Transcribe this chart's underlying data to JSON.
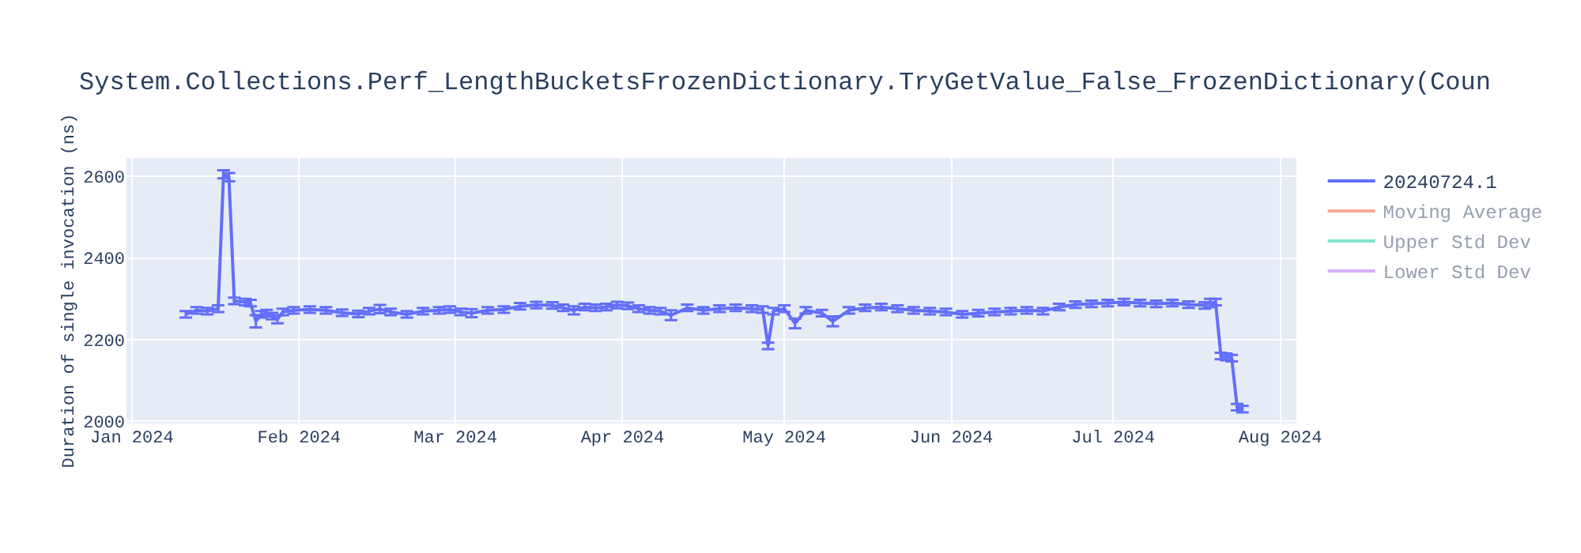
{
  "chart_data": {
    "type": "line",
    "title": "System.Collections.Perf_LengthBucketsFrozenDictionary.TryGetValue_False_FrozenDictionary(Coun",
    "ylabel": "Duration of single invocation (ns)",
    "x": [
      "2024-01-11",
      "2024-01-13",
      "2024-01-15",
      "2024-01-17",
      "2024-01-18",
      "2024-01-19",
      "2024-01-20",
      "2024-01-22",
      "2024-01-23",
      "2024-01-24",
      "2024-01-25",
      "2024-01-26",
      "2024-01-27",
      "2024-01-28",
      "2024-01-29",
      "2024-01-31",
      "2024-02-03",
      "2024-02-06",
      "2024-02-09",
      "2024-02-12",
      "2024-02-14",
      "2024-02-16",
      "2024-02-18",
      "2024-02-21",
      "2024-02-24",
      "2024-02-27",
      "2024-02-29",
      "2024-03-02",
      "2024-03-04",
      "2024-03-07",
      "2024-03-10",
      "2024-03-13",
      "2024-03-16",
      "2024-03-19",
      "2024-03-21",
      "2024-03-23",
      "2024-03-25",
      "2024-03-27",
      "2024-03-29",
      "2024-03-31",
      "2024-04-02",
      "2024-04-04",
      "2024-04-06",
      "2024-04-08",
      "2024-04-10",
      "2024-04-13",
      "2024-04-16",
      "2024-04-19",
      "2024-04-22",
      "2024-04-25",
      "2024-04-27",
      "2024-04-28",
      "2024-04-29",
      "2024-05-01",
      "2024-05-03",
      "2024-05-05",
      "2024-05-08",
      "2024-05-10",
      "2024-05-13",
      "2024-05-16",
      "2024-05-19",
      "2024-05-22",
      "2024-05-25",
      "2024-05-28",
      "2024-05-31",
      "2024-06-03",
      "2024-06-06",
      "2024-06-09",
      "2024-06-12",
      "2024-06-15",
      "2024-06-18",
      "2024-06-21",
      "2024-06-24",
      "2024-06-27",
      "2024-06-30",
      "2024-07-03",
      "2024-07-06",
      "2024-07-09",
      "2024-07-12",
      "2024-07-15",
      "2024-07-18",
      "2024-07-19",
      "2024-07-20",
      "2024-07-21",
      "2024-07-22",
      "2024-07-23",
      "2024-07-24",
      "2024-07-25"
    ],
    "series": [
      {
        "name": "20240724.1",
        "color": "#636efa",
        "values": [
          2262,
          2272,
          2270,
          2276,
          2605,
          2598,
          2295,
          2292,
          2290,
          2245,
          2262,
          2265,
          2258,
          2250,
          2268,
          2272,
          2274,
          2272,
          2266,
          2263,
          2270,
          2275,
          2268,
          2262,
          2270,
          2272,
          2274,
          2268,
          2265,
          2272,
          2274,
          2282,
          2285,
          2284,
          2278,
          2272,
          2280,
          2278,
          2280,
          2285,
          2283,
          2276,
          2272,
          2270,
          2260,
          2278,
          2272,
          2276,
          2278,
          2276,
          2274,
          2185,
          2270,
          2276,
          2240,
          2272,
          2265,
          2245,
          2272,
          2278,
          2280,
          2276,
          2272,
          2270,
          2268,
          2262,
          2265,
          2268,
          2270,
          2272,
          2270,
          2280,
          2286,
          2288,
          2290,
          2292,
          2290,
          2288,
          2290,
          2286,
          2284,
          2290,
          2292,
          2160,
          2158,
          2155,
          2035,
          2030
        ],
        "errors": [
          8,
          8,
          8,
          8,
          10,
          10,
          8,
          8,
          8,
          15,
          8,
          8,
          8,
          10,
          8,
          8,
          8,
          8,
          8,
          8,
          8,
          10,
          8,
          8,
          8,
          8,
          8,
          8,
          10,
          8,
          8,
          8,
          8,
          8,
          8,
          10,
          8,
          8,
          8,
          8,
          8,
          8,
          8,
          8,
          12,
          8,
          8,
          8,
          8,
          8,
          8,
          8,
          8,
          8,
          12,
          8,
          8,
          12,
          8,
          8,
          8,
          8,
          8,
          8,
          8,
          8,
          8,
          8,
          8,
          8,
          8,
          8,
          8,
          8,
          8,
          8,
          8,
          8,
          8,
          8,
          8,
          10,
          8,
          8,
          8,
          8,
          8,
          8
        ]
      },
      {
        "name": "Moving Average",
        "color": "#ef553b",
        "values": [
          null,
          null,
          null,
          null,
          null,
          null,
          null,
          null,
          null,
          null,
          null,
          null,
          null,
          null,
          null,
          null,
          null,
          null,
          null,
          null,
          null,
          null,
          null,
          null,
          null,
          null,
          null,
          null,
          null,
          null,
          null,
          null,
          null,
          null,
          null,
          null,
          null,
          null,
          null,
          null,
          null,
          null,
          null,
          null,
          null,
          null,
          null,
          null,
          null,
          null,
          null,
          null,
          null,
          null,
          null,
          null,
          null,
          null,
          null,
          null,
          null,
          null,
          null,
          null,
          null,
          null,
          null,
          null,
          null,
          null,
          null,
          null,
          null,
          null,
          null,
          null,
          null,
          null,
          null,
          null,
          null,
          null,
          null,
          null,
          null,
          null,
          null,
          null
        ]
      },
      {
        "name": "Upper Std Dev",
        "color": "#00cc96",
        "values": [
          null,
          null,
          null,
          null,
          null,
          null,
          null,
          null,
          null,
          null,
          null,
          null,
          null,
          null,
          null,
          null,
          null,
          null,
          null,
          null,
          null,
          null,
          null,
          null,
          null,
          null,
          null,
          null,
          null,
          null,
          null,
          null,
          null,
          null,
          null,
          null,
          null,
          null,
          null,
          null,
          null,
          null,
          null,
          null,
          null,
          null,
          null,
          null,
          null,
          null,
          null,
          null,
          null,
          null,
          null,
          null,
          null,
          null,
          null,
          null,
          null,
          null,
          null,
          null,
          null,
          null,
          null,
          null,
          null,
          null,
          null,
          null,
          null,
          null,
          null,
          null,
          null,
          null,
          null,
          null,
          null,
          null,
          null,
          null,
          null,
          null,
          null,
          null
        ]
      },
      {
        "name": "Lower Std Dev",
        "color": "#ab63fa",
        "values": [
          null,
          null,
          null,
          null,
          null,
          null,
          null,
          null,
          null,
          null,
          null,
          null,
          null,
          null,
          null,
          null,
          null,
          null,
          null,
          null,
          null,
          null,
          null,
          null,
          null,
          null,
          null,
          null,
          null,
          null,
          null,
          null,
          null,
          null,
          null,
          null,
          null,
          null,
          null,
          null,
          null,
          null,
          null,
          null,
          null,
          null,
          null,
          null,
          null,
          null,
          null,
          null,
          null,
          null,
          null,
          null,
          null,
          null,
          null,
          null,
          null,
          null,
          null,
          null,
          null,
          null,
          null,
          null,
          null,
          null,
          null,
          null,
          null,
          null,
          null,
          null,
          null,
          null,
          null,
          null,
          null,
          null,
          null,
          null,
          null,
          null,
          null,
          null
        ]
      }
    ],
    "xlim": [
      "2023-12-31",
      "2024-08-04"
    ],
    "xticks": [
      {
        "value": "2024-01-01",
        "label": "Jan 2024"
      },
      {
        "value": "2024-02-01",
        "label": "Feb 2024"
      },
      {
        "value": "2024-03-01",
        "label": "Mar 2024"
      },
      {
        "value": "2024-04-01",
        "label": "Apr 2024"
      },
      {
        "value": "2024-05-01",
        "label": "May 2024"
      },
      {
        "value": "2024-06-01",
        "label": "Jun 2024"
      },
      {
        "value": "2024-07-01",
        "label": "Jul 2024"
      },
      {
        "value": "2024-08-01",
        "label": "Aug 2024"
      }
    ],
    "ylim": [
      1995,
      2645
    ],
    "yticks": [
      2000,
      2200,
      2400,
      2600
    ],
    "grid": true,
    "legend": "top right",
    "marker": "none",
    "line_style": "solid"
  }
}
